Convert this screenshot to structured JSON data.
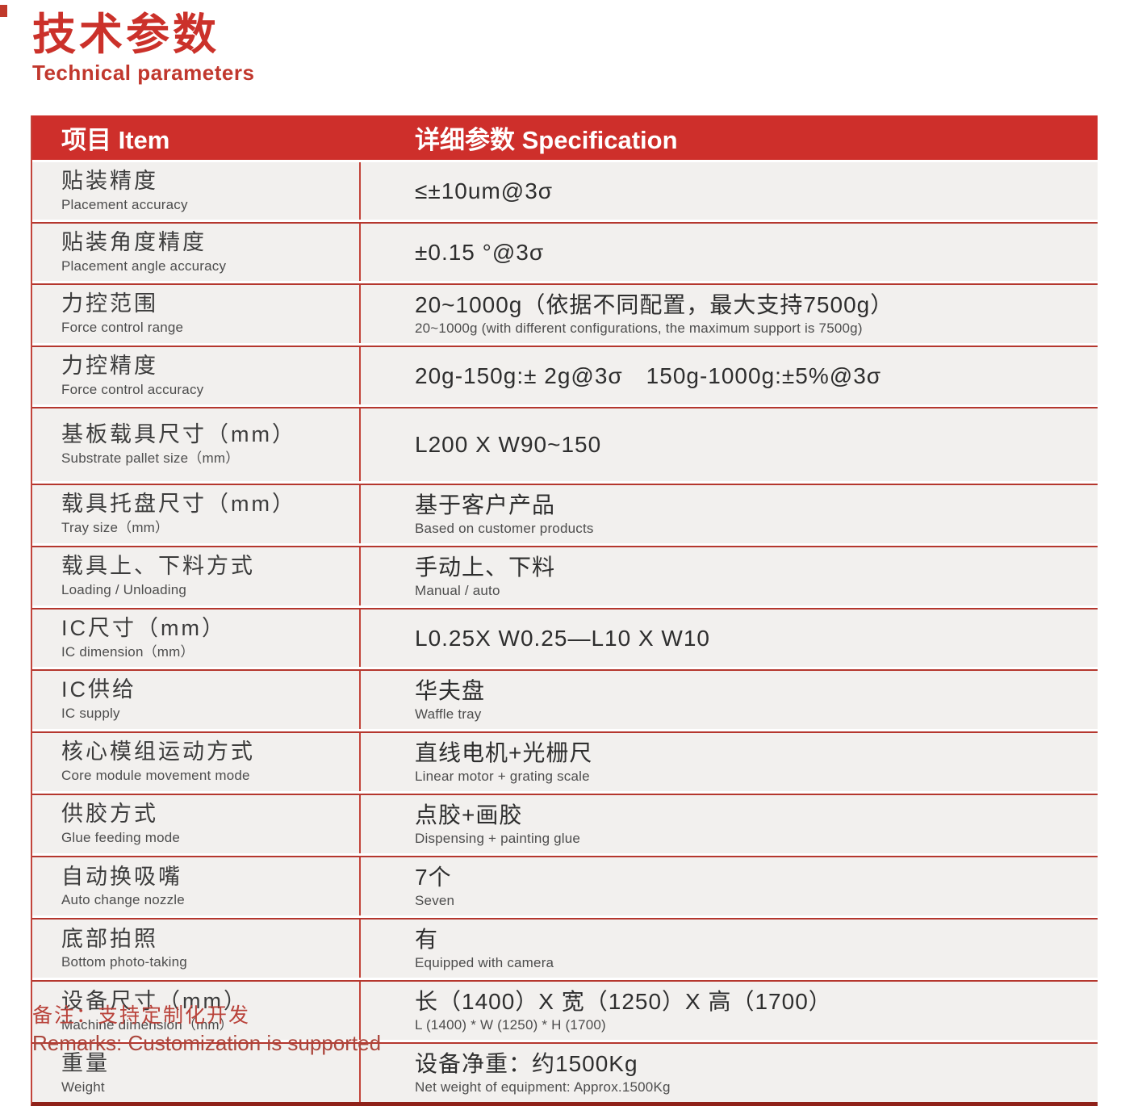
{
  "page": {
    "title_cn": "技术参数",
    "title_en": "Technical parameters",
    "remark_cn": "备注：支持定制化开发",
    "remark_en": "Remarks: Customization is supported"
  },
  "colors": {
    "accent_red": "#ce2f2b",
    "line_red": "#b5372e",
    "bottom_line_dark_red": "#8f2119",
    "row_background": "#f2f0ee",
    "title_red": "#cb312a",
    "footer_red": "#ab463c"
  },
  "table": {
    "headers": {
      "item": "项目 Item",
      "spec": "详细参数 Specification"
    },
    "rows": [
      {
        "item_cn": "贴装精度",
        "item_en": "Placement accuracy",
        "spec_cn": "≤±10um@3σ",
        "spec_en": ""
      },
      {
        "item_cn": "贴装角度精度",
        "item_en": "Placement angle accuracy",
        "spec_cn": "±0.15 °@3σ",
        "spec_en": ""
      },
      {
        "item_cn": "力控范围",
        "item_en": "Force control range",
        "spec_cn": "20~1000g（依据不同配置，最大支持7500g）",
        "spec_en": "20~1000g (with different configurations, the maximum support is 7500g)"
      },
      {
        "item_cn": "力控精度",
        "item_en": "Force control accuracy",
        "spec_cn": "20g-150g:± 2g@3σ　150g-1000g:±5%@3σ",
        "spec_en": ""
      },
      {
        "item_cn": "基板载具尺寸（mm）",
        "item_en": "Substrate pallet size（mm）",
        "spec_cn": "L200 X W90~150",
        "spec_en": ""
      },
      {
        "item_cn": "载具托盘尺寸（mm）",
        "item_en": "Tray size（mm）",
        "spec_cn": "基于客户产品",
        "spec_en": "Based on customer products"
      },
      {
        "item_cn": "载具上、下料方式",
        "item_en": "Loading / Unloading",
        "spec_cn": "手动上、下料",
        "spec_en": "Manual / auto"
      },
      {
        "item_cn": "IC尺寸（mm）",
        "item_en": "IC dimension（mm）",
        "spec_cn": "L0.25X W0.25—L10 X W10",
        "spec_en": ""
      },
      {
        "item_cn": "IC供给",
        "item_en": "IC supply",
        "spec_cn": "华夫盘",
        "spec_en": "Waffle tray"
      },
      {
        "item_cn": "核心模组运动方式",
        "item_en": "Core module movement mode",
        "spec_cn": "直线电机+光栅尺",
        "spec_en": "Linear motor + grating scale"
      },
      {
        "item_cn": "供胶方式",
        "item_en": "Glue feeding mode",
        "spec_cn": "点胶+画胶",
        "spec_en": "Dispensing + painting glue"
      },
      {
        "item_cn": "自动换吸嘴",
        "item_en": "Auto change nozzle",
        "spec_cn": "7个",
        "spec_en": "Seven"
      },
      {
        "item_cn": "底部拍照",
        "item_en": "Bottom photo-taking",
        "spec_cn": "有",
        "spec_en": "Equipped with camera"
      },
      {
        "item_cn": "设备尺寸（mm）",
        "item_en": "Machine dimension（mm）",
        "spec_cn": "长（1400）X 宽（1250）X 高（1700）",
        "spec_en": "L (1400) * W (1250) * H (1700)"
      },
      {
        "item_cn": "重量",
        "item_en": "Weight",
        "spec_cn": "设备净重：约1500Kg",
        "spec_en": "Net weight of equipment: Approx.1500Kg"
      }
    ]
  }
}
